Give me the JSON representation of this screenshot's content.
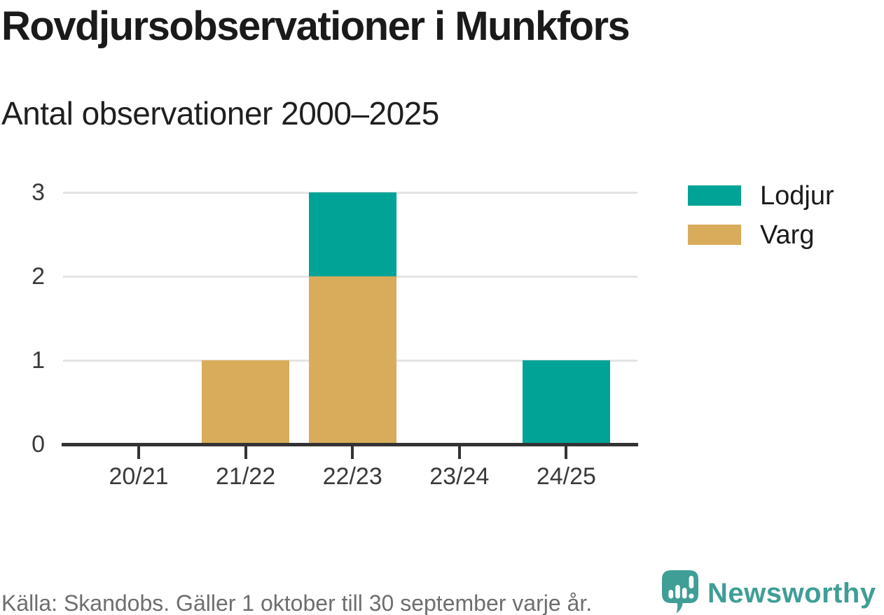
{
  "chart_data": {
    "type": "bar",
    "stacked": true,
    "title": "Rovdjursobservationer i Munkfors",
    "subtitle": "Antal observationer 2000–2025",
    "categories": [
      "20/21",
      "21/22",
      "22/23",
      "23/24",
      "24/25"
    ],
    "series": [
      {
        "name": "Varg",
        "color": "#d8ac5a",
        "values": [
          0,
          1,
          2,
          0,
          0
        ]
      },
      {
        "name": "Lodjur",
        "color": "#00a396",
        "values": [
          0,
          0,
          1,
          0,
          1
        ]
      }
    ],
    "legend": [
      {
        "label": "Lodjur",
        "color": "#00a396"
      },
      {
        "label": "Varg",
        "color": "#d8ac5a"
      }
    ],
    "yticks": [
      0,
      1,
      2,
      3
    ],
    "ylim": [
      0,
      3
    ],
    "grid": true,
    "legend_position": "top-right",
    "xlabel": "",
    "ylabel": ""
  },
  "footer": {
    "source": "Källa: Skandobs. Gäller 1 oktober till 30 september varje år.",
    "brand": "Newsworthy"
  },
  "colors": {
    "lodjur": "#00a396",
    "varg": "#d8ac5a",
    "brand_teal": "#3f9e96",
    "grid": "#e4e4e4",
    "axis": "#333333",
    "title_text": "#1a1a1a",
    "muted_text": "#6e6e6e"
  }
}
